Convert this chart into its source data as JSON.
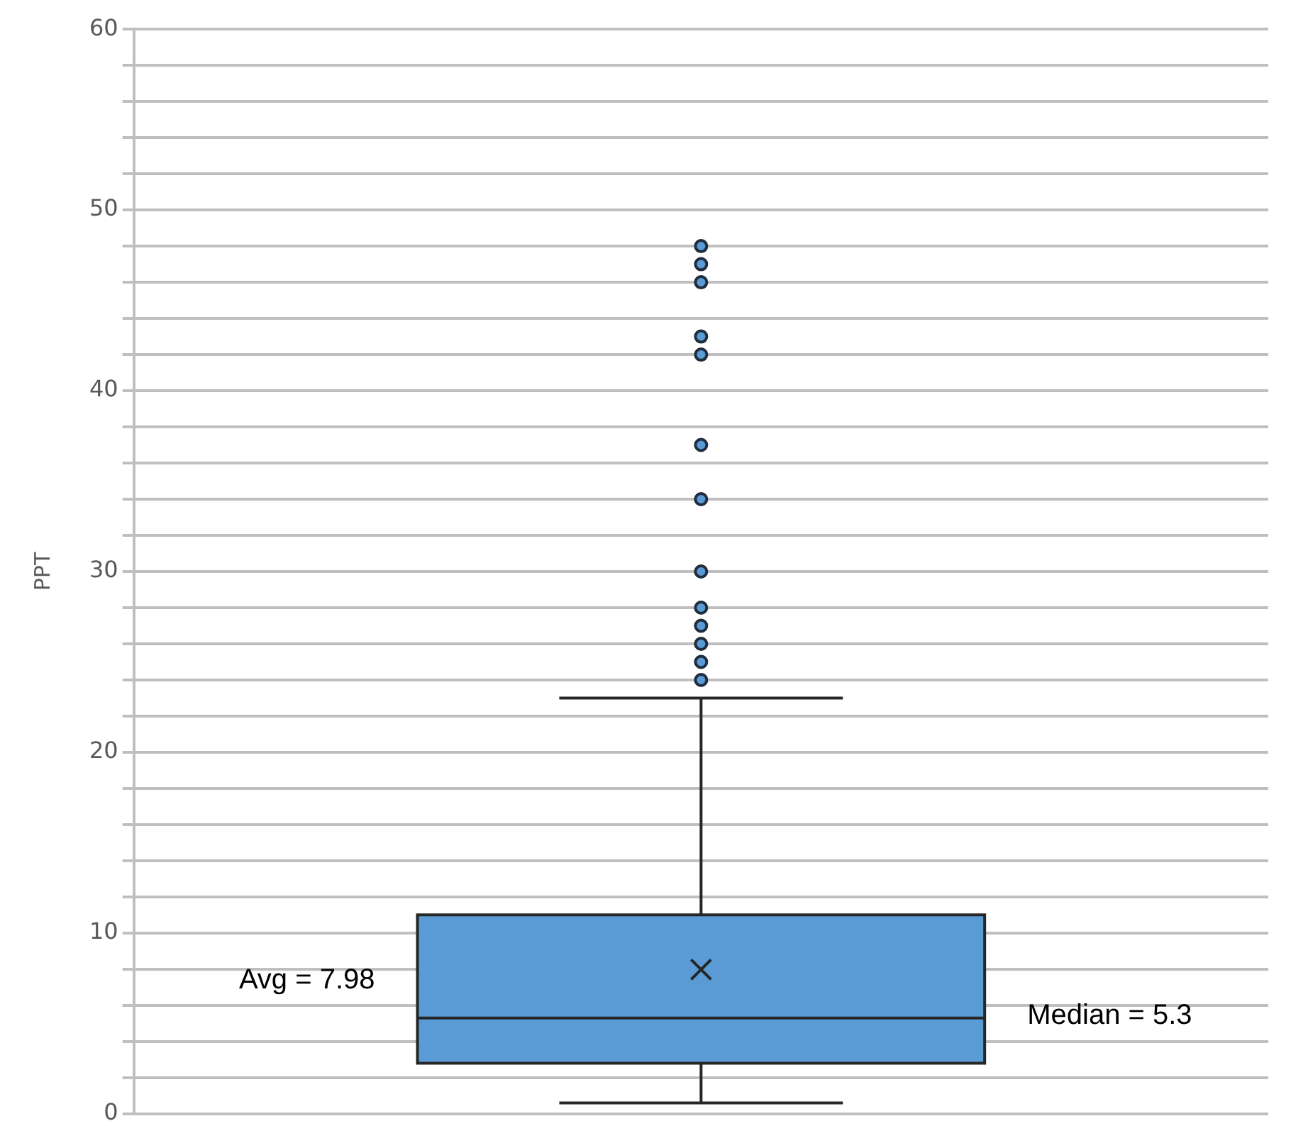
{
  "chart_data": {
    "type": "box",
    "ylabel": "PPT",
    "categories": [
      null
    ],
    "color": "#5b9bd5",
    "boxes": [
      {
        "low": 0.6,
        "q1": 2.8,
        "median": 5.3,
        "q3": 11,
        "high": 23,
        "mean": 7.98,
        "outliers": [
          48,
          47,
          46,
          43,
          42,
          37,
          34,
          30,
          28,
          27,
          26,
          25,
          24
        ]
      }
    ],
    "ylim": [
      0,
      60
    ],
    "yticks": [
      0,
      {
        "value": 2,
        "label": null
      },
      {
        "value": 4,
        "label": null
      },
      {
        "value": 6,
        "label": null
      },
      {
        "value": 8,
        "label": null
      },
      10,
      {
        "value": 12,
        "label": null
      },
      {
        "value": 14,
        "label": null
      },
      {
        "value": 16,
        "label": null
      },
      {
        "value": 18,
        "label": null
      },
      20,
      {
        "value": 22,
        "label": null
      },
      {
        "value": 24,
        "label": null
      },
      {
        "value": 26,
        "label": null
      },
      {
        "value": 28,
        "label": null
      },
      30,
      {
        "value": 32,
        "label": null
      },
      {
        "value": 34,
        "label": null
      },
      {
        "value": 36,
        "label": null
      },
      {
        "value": 38,
        "label": null
      },
      40,
      {
        "value": 42,
        "label": null
      },
      {
        "value": 44,
        "label": null
      },
      {
        "value": 46,
        "label": null
      },
      {
        "value": 48,
        "label": null
      },
      50,
      {
        "value": 52,
        "label": null
      },
      {
        "value": 54,
        "label": null
      },
      {
        "value": 56,
        "label": null
      },
      {
        "value": 58,
        "label": null
      },
      60
    ],
    "grid": "y",
    "tick_labels": "y",
    "marker": "circle",
    "annotations": [
      "Avg = 7.98",
      "Median = 5.3"
    ]
  }
}
